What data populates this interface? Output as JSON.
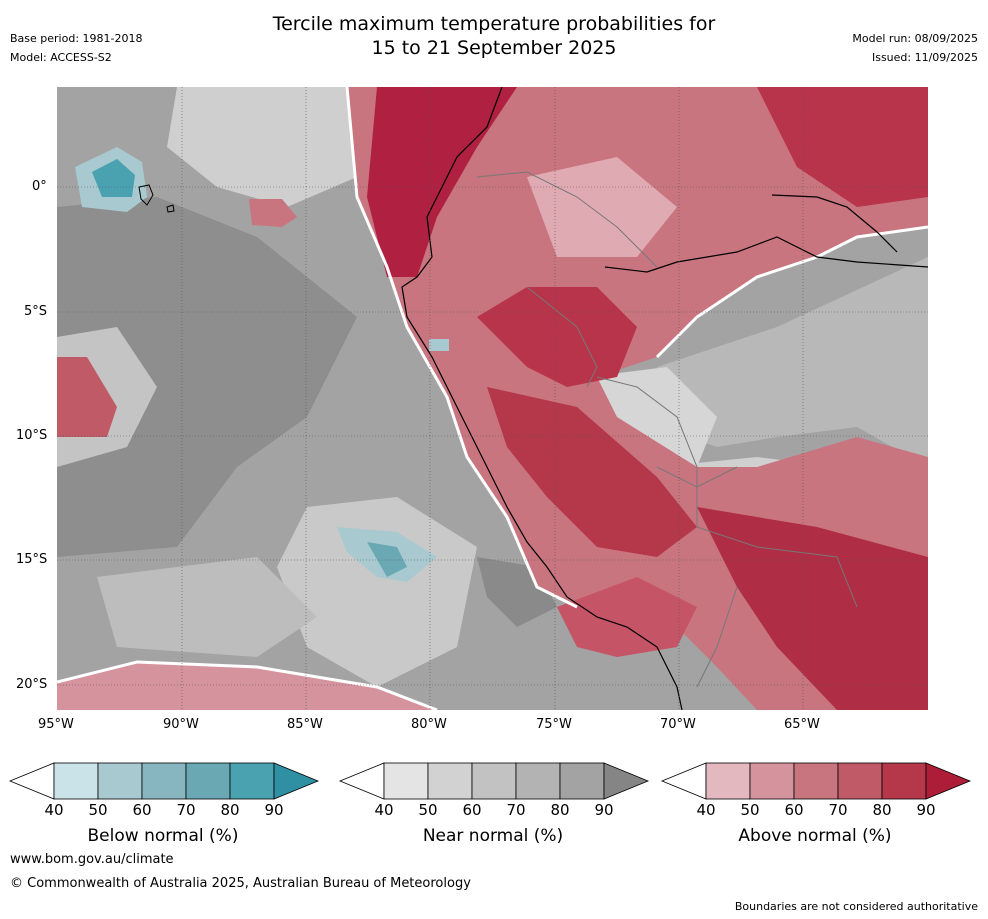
{
  "header": {
    "title_line1": "Tercile maximum temperature probabilities for",
    "title_line2": "15 to 21 September 2025",
    "base_period": "Base period: 1981-2018",
    "model": "Model: ACCESS-S2",
    "model_run": "Model run: 08/09/2025",
    "issued": "Issued: 11/09/2025"
  },
  "axes": {
    "lat_labels": [
      "0°",
      "5°S",
      "10°S",
      "15°S",
      "20°S"
    ],
    "lon_labels": [
      "95°W",
      "90°W",
      "85°W",
      "80°W",
      "75°W",
      "70°W",
      "65°W"
    ]
  },
  "colorbars": [
    {
      "label": "Below normal (%)",
      "ticks": [
        "40",
        "50",
        "60",
        "70",
        "80",
        "90"
      ],
      "colors": [
        "#ffffff",
        "#c9e3e8",
        "#a8c9cf",
        "#88b6c0",
        "#6aa9b4",
        "#4aa1b0",
        "#2f8fa3"
      ]
    },
    {
      "label": "Near normal (%)",
      "ticks": [
        "40",
        "50",
        "60",
        "70",
        "80",
        "90"
      ],
      "colors": [
        "#ffffff",
        "#e4e4e4",
        "#d2d2d2",
        "#c2c2c2",
        "#b3b3b3",
        "#a3a3a3",
        "#858585"
      ]
    },
    {
      "label": "Above normal (%)",
      "ticks": [
        "40",
        "50",
        "60",
        "70",
        "80",
        "90"
      ],
      "colors": [
        "#ffffff",
        "#e3b8bf",
        "#d5939d",
        "#c97580",
        "#c05a67",
        "#b5374a",
        "#ad1d38"
      ]
    }
  ],
  "footer": {
    "website": "www.bom.gov.au/climate",
    "copyright": "© Commonwealth of Australia 2025, Australian Bureau of Meteorology",
    "disclaimer": "Boundaries are not considered authoritative"
  }
}
